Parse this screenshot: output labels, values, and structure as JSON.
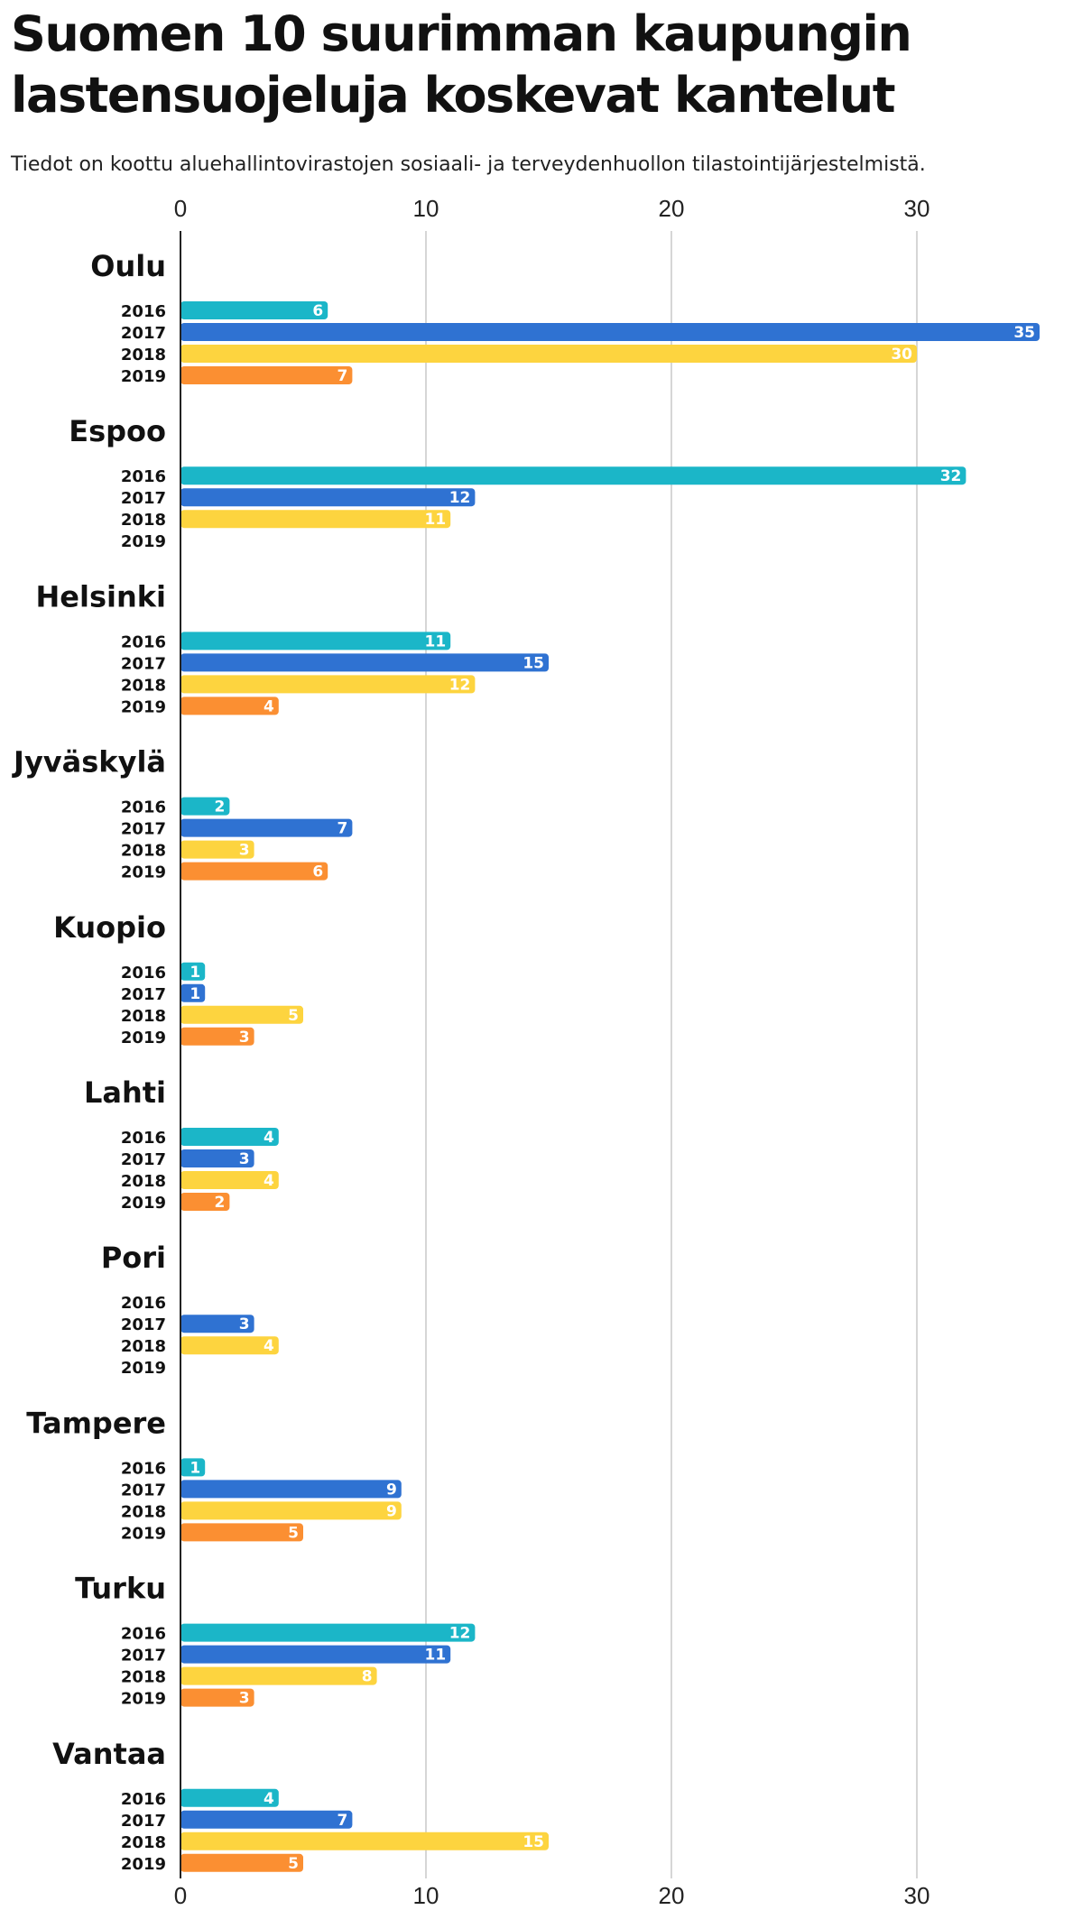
{
  "chart_data": {
    "type": "bar",
    "orientation": "horizontal",
    "title": "Suomen 10 suurimman kaupungin lastensuojeluja koskevat kantelut",
    "subtitle": "Tiedot on koottu aluehallintovirastojen sosiaali- ja terveydenhuollon tilastointijärjestelmistä.",
    "xlim": [
      0,
      35
    ],
    "xticks": [
      "0",
      "10",
      "20",
      "30"
    ],
    "grid": true,
    "years": [
      "2016",
      "2017",
      "2018",
      "2019"
    ],
    "colors": {
      "2016": "#1bb6c8",
      "2017": "#2f72d2",
      "2018": "#fdd43f",
      "2019": "#fb8f32"
    },
    "groups": [
      {
        "city": "Oulu",
        "values": [
          6,
          35,
          30,
          7
        ]
      },
      {
        "city": "Espoo",
        "values": [
          32,
          12,
          11,
          null
        ]
      },
      {
        "city": "Helsinki",
        "values": [
          11,
          15,
          12,
          4
        ]
      },
      {
        "city": "Jyväskylä",
        "values": [
          2,
          7,
          3,
          6
        ]
      },
      {
        "city": "Kuopio",
        "values": [
          1,
          1,
          5,
          3
        ]
      },
      {
        "city": "Lahti",
        "values": [
          4,
          3,
          4,
          2
        ]
      },
      {
        "city": "Pori",
        "values": [
          null,
          3,
          4,
          null
        ]
      },
      {
        "city": "Tampere",
        "values": [
          1,
          9,
          9,
          5
        ]
      },
      {
        "city": "Turku",
        "values": [
          12,
          11,
          8,
          3
        ]
      },
      {
        "city": "Vantaa",
        "values": [
          4,
          7,
          15,
          5
        ]
      }
    ]
  }
}
